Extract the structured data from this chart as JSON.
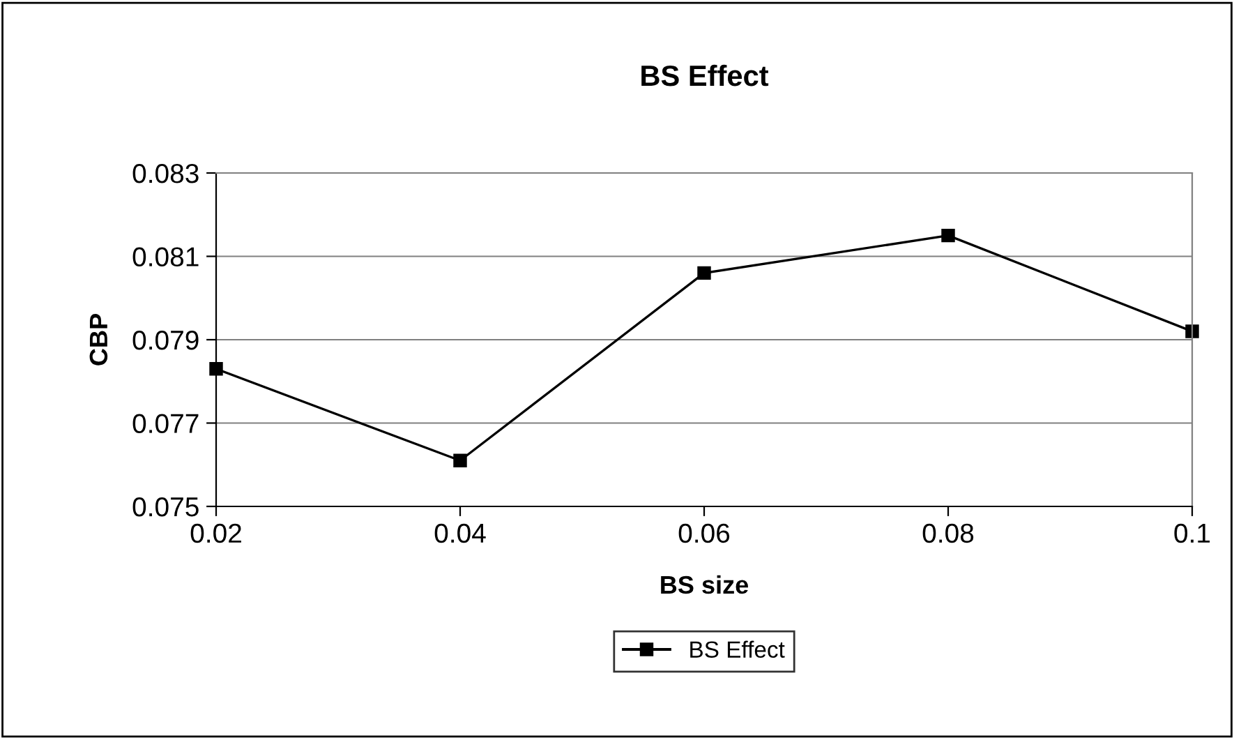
{
  "chart_data": {
    "type": "line",
    "title": "BS Effect",
    "xlabel": "BS size",
    "ylabel": "CBP",
    "x": [
      0.02,
      0.04,
      0.06,
      0.08,
      0.1
    ],
    "series": [
      {
        "name": "BS Effect",
        "color": "#000000",
        "values": [
          0.0783,
          0.0761,
          0.0806,
          0.0815,
          0.0792
        ]
      }
    ],
    "xlim": [
      0.02,
      0.1
    ],
    "xticks": [
      0.02,
      0.04,
      0.06,
      0.08,
      0.1
    ],
    "ylim": [
      0.075,
      0.083
    ],
    "yticks": [
      0.075,
      0.077,
      0.079,
      0.081,
      0.083
    ],
    "grid": "y",
    "legend": "bottom",
    "marker": "square",
    "line_style": "solid"
  }
}
